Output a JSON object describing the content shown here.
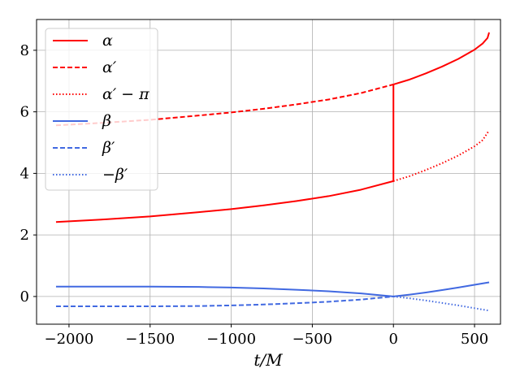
{
  "chart_data": {
    "type": "line",
    "xlabel": "t/M",
    "ylabel": "",
    "xlim": [
      -2200,
      660
    ],
    "ylim": [
      -0.9,
      9.0
    ],
    "xticks": [
      -2000,
      -1500,
      -1000,
      -500,
      0,
      500
    ],
    "yticks": [
      0,
      2,
      4,
      6,
      8
    ],
    "xtick_labels": [
      "−2000",
      "−1500",
      "−1000",
      "−500",
      "0",
      "500"
    ],
    "ytick_labels": [
      "0",
      "2",
      "4",
      "6",
      "8"
    ],
    "grid": true,
    "legend_position": "top-left",
    "colors": {
      "alpha": "#ff0000",
      "beta": "#4169e1"
    },
    "series": [
      {
        "name": "α",
        "color": "#ff0000",
        "dash": "solid",
        "x": [
          -2080,
          -1800,
          -1500,
          -1200,
          -1000,
          -800,
          -600,
          -400,
          -200,
          0,
          0,
          100,
          200,
          300,
          400,
          500,
          550,
          580,
          590
        ],
        "y": [
          2.42,
          2.5,
          2.6,
          2.74,
          2.84,
          2.96,
          3.1,
          3.26,
          3.47,
          3.75,
          6.89,
          7.05,
          7.25,
          7.47,
          7.72,
          8.02,
          8.22,
          8.4,
          8.58
        ]
      },
      {
        "name": "α′",
        "color": "#ff0000",
        "dash": "dashed",
        "x": [
          -2080,
          -1800,
          -1500,
          -1200,
          -1000,
          -800,
          -600,
          -400,
          -200,
          0
        ],
        "y": [
          5.56,
          5.64,
          5.74,
          5.88,
          5.98,
          6.1,
          6.24,
          6.4,
          6.61,
          6.89
        ]
      },
      {
        "name": "α′ − π",
        "color": "#ff0000",
        "dash": "dotted",
        "x": [
          0,
          100,
          200,
          300,
          400,
          500,
          550,
          590
        ],
        "y": [
          3.75,
          3.91,
          4.11,
          4.33,
          4.58,
          4.88,
          5.08,
          5.4
        ]
      },
      {
        "name": "β",
        "color": "#4169e1",
        "dash": "solid",
        "x": [
          -2080,
          -1800,
          -1500,
          -1200,
          -1000,
          -800,
          -600,
          -400,
          -200,
          0,
          100,
          200,
          300,
          400,
          500,
          590
        ],
        "y": [
          0.32,
          0.32,
          0.32,
          0.31,
          0.29,
          0.26,
          0.22,
          0.17,
          0.1,
          0.0,
          0.06,
          0.13,
          0.21,
          0.29,
          0.38,
          0.46
        ]
      },
      {
        "name": "β′",
        "color": "#4169e1",
        "dash": "dashed",
        "x": [
          -2080,
          -1800,
          -1500,
          -1200,
          -1000,
          -800,
          -600,
          -400,
          -200,
          0
        ],
        "y": [
          -0.32,
          -0.32,
          -0.32,
          -0.31,
          -0.29,
          -0.26,
          -0.22,
          -0.17,
          -0.1,
          0.0
        ]
      },
      {
        "name": "−β′",
        "color": "#4169e1",
        "dash": "dotted",
        "x": [
          0,
          100,
          200,
          300,
          400,
          500,
          590
        ],
        "y": [
          0.0,
          -0.06,
          -0.13,
          -0.21,
          -0.29,
          -0.38,
          -0.46
        ]
      }
    ]
  }
}
